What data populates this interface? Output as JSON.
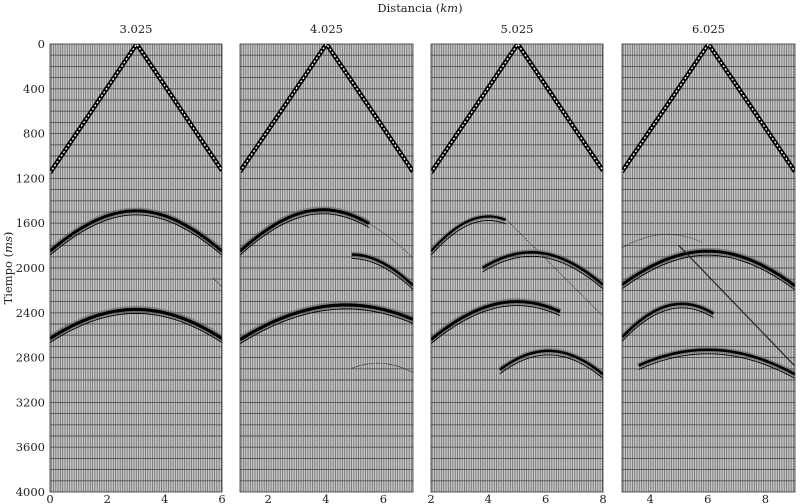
{
  "chart_data": {
    "type": "line",
    "title": "",
    "xlabel": "Distancia",
    "xlabel_unit": "km",
    "ylabel": "Tiempo",
    "ylabel_unit": "ms",
    "ylim": [
      0,
      4000
    ],
    "y_inverted": true,
    "y_ticks": [
      0,
      400,
      800,
      1200,
      1600,
      2000,
      2400,
      2800,
      3200,
      3600,
      4000
    ],
    "grid": true,
    "colors": {
      "background": "#c8c8c8",
      "trace": "#6a6a6a",
      "grid": "#505050",
      "event": "#000000"
    },
    "panels": [
      {
        "title": "3.025",
        "xlim": [
          0,
          6
        ],
        "x_ticks": [
          0,
          2,
          4,
          6
        ],
        "direct_wave": {
          "source": 3.025,
          "slowness_ms_per_km": 380
        },
        "events": [
          {
            "apex": [
              3.0,
              1490
            ],
            "through": [
              0,
              1850
            ],
            "range": [
              0,
              6
            ],
            "weight": 3
          },
          {
            "apex": [
              3.0,
              2370
            ],
            "through": [
              0,
              2630
            ],
            "range": [
              0,
              6
            ],
            "weight": 3.2
          },
          {
            "line": [
              [
                5.7,
                2090
              ],
              [
                6.0,
                2170
              ]
            ],
            "weight": 0.8
          }
        ]
      },
      {
        "title": "4.025",
        "xlim": [
          1.025,
          7.025
        ],
        "x_ticks": [
          2,
          4,
          6
        ],
        "direct_wave": {
          "source": 4.025,
          "slowness_ms_per_km": 380
        },
        "events": [
          {
            "apex": [
              3.9,
              1480
            ],
            "through": [
              1.025,
              1850
            ],
            "range": [
              1.025,
              5.5
            ],
            "weight": 3
          },
          {
            "apex": [
              3.9,
              1480
            ],
            "through": [
              1.025,
              1850
            ],
            "range": [
              5.5,
              7.025
            ],
            "weight": 0.6
          },
          {
            "apex": [
              4.9,
              1880
            ],
            "through": [
              7.0,
              2150
            ],
            "range": [
              4.9,
              7.025
            ],
            "weight": 2.5
          },
          {
            "apex": [
              4.7,
              2330
            ],
            "through": [
              1.025,
              2640
            ],
            "range": [
              1.025,
              7.025
            ],
            "weight": 3.2
          },
          {
            "apex": [
              5.8,
              2850
            ],
            "through": [
              7.0,
              2930
            ],
            "range": [
              4.9,
              7.025
            ],
            "weight": 0.8
          }
        ]
      },
      {
        "title": "5.025",
        "xlim": [
          2,
          8
        ],
        "x_ticks": [
          2,
          4,
          6,
          8
        ],
        "direct_wave": {
          "source": 5.025,
          "slowness_ms_per_km": 380
        },
        "events": [
          {
            "apex": [
              4.0,
              1540
            ],
            "through": [
              2,
              1850
            ],
            "range": [
              2,
              4.6
            ],
            "weight": 2.2
          },
          {
            "line": [
              [
                4.6,
                1560
              ],
              [
                8.0,
                2430
              ]
            ],
            "weight": 0.6
          },
          {
            "apex": [
              5.5,
              1860
            ],
            "through": [
              8,
              2150
            ],
            "range": [
              3.8,
              8
            ],
            "weight": 2.6
          },
          {
            "apex": [
              5.0,
              2300
            ],
            "through": [
              2,
              2640
            ],
            "range": [
              2,
              6.5
            ],
            "weight": 3
          },
          {
            "apex": [
              6.1,
              2740
            ],
            "through": [
              8,
              2950
            ],
            "range": [
              4.4,
              8
            ],
            "weight": 2.5
          }
        ]
      },
      {
        "title": "6.025",
        "xlim": [
          3.025,
          9.025
        ],
        "x_ticks": [
          4,
          6,
          8
        ],
        "direct_wave": {
          "source": 6.025,
          "slowness_ms_per_km": 380
        },
        "events": [
          {
            "apex": [
              4.6,
              1700
            ],
            "through": [
              3.025,
              1820
            ],
            "range": [
              3.025,
              5.8
            ],
            "weight": 0.7
          },
          {
            "apex": [
              6.0,
              1850
            ],
            "through": [
              3.025,
              2150
            ],
            "range": [
              3.025,
              9.025
            ],
            "weight": 3
          },
          {
            "line": [
              [
                5.0,
                1800
              ],
              [
                9.0,
                2870
              ]
            ],
            "weight": 1.2
          },
          {
            "apex": [
              5.1,
              2320
            ],
            "through": [
              3.025,
              2620
            ],
            "range": [
              3.025,
              6.2
            ],
            "weight": 2.6
          },
          {
            "apex": [
              6.0,
              2730
            ],
            "through": [
              9.025,
              2950
            ],
            "range": [
              3.6,
              9.025
            ],
            "weight": 2.6
          }
        ]
      }
    ]
  }
}
